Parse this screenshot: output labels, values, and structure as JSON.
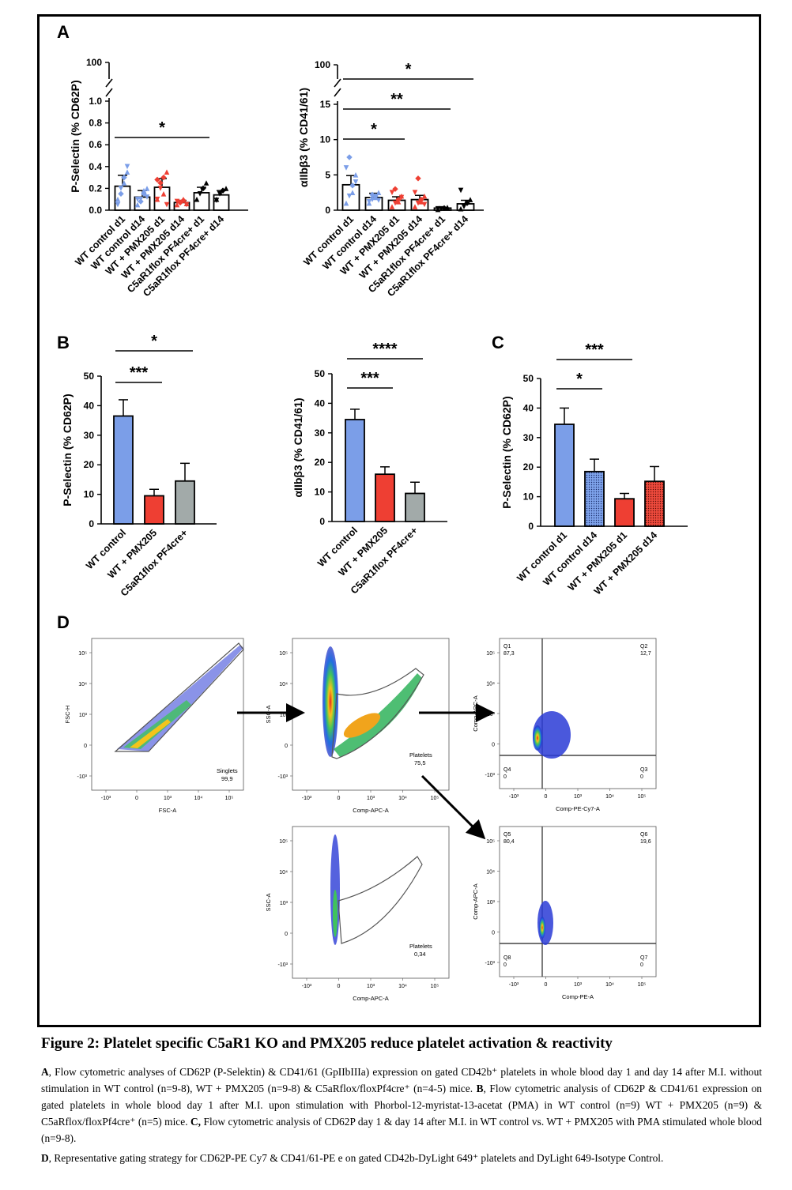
{
  "figure_title": "Figure 2: Platelet specific C5aR1 KO and PMX205 reduce platelet activation & reactivity",
  "caption": {
    "a_lead": "A",
    "a_text": ", Flow cytometric analyses of CD62P (P-Selektin) & CD41/61 (GpIIbIIIa) expression on gated CD42b⁺ platelets in whole blood day 1 and day 14 after M.I. without stimulation in WT control (n=9-8), WT + PMX205 (n=9-8) & C5aRflox/floxPf4cre⁺ (n=4-5) mice. ",
    "b_lead": "B",
    "b_text": ", Flow cytometric analysis of CD62P & CD41/61 expression on gated platelets in whole blood day 1 after M.I. upon stimulation with Phorbol-12-myristat-13-acetat (PMA) in WT control (n=9) WT + PMX205 (n=9) & C5aRflox/floxPf4cre⁺ (n=5) mice. ",
    "c_lead": "C,",
    "c_text": " Flow cytometric analysis of CD62P day 1 & day 14 after M.I. in WT control vs. WT + PMX205 with PMA stimulated whole blood (n=9-8).",
    "d_lead": "D",
    "d_text": ", Representative gating strategy for CD62P-PE Cy7 & CD41/61-PE e on gated CD42b-DyLight 649⁺ platelets and DyLight 649-Isotype Control."
  },
  "panel_labels": {
    "a": "A",
    "b": "B",
    "c": "C",
    "d": "D"
  },
  "colors": {
    "blue": "#7b9ee8",
    "red": "#ee3f33",
    "gray": "#a2aaa9",
    "black": "#000000",
    "pt_blue": "#7fa4ec",
    "pt_red": "#ee4a3c"
  },
  "chart_data": [
    {
      "id": "A1",
      "type": "bar",
      "panel": "A",
      "ylabel": "P-Selectin (% CD62P)",
      "yticks_low": [
        "0.0",
        "0.2",
        "0.4",
        "0.6",
        "0.8",
        "1.0"
      ],
      "yticks_high": [
        "100"
      ],
      "ylim": [
        0,
        1.0
      ],
      "axis_break": [
        1.0,
        100
      ],
      "categories": [
        "WT control d1",
        "WT control d14",
        "WT + PMX205 d1",
        "WT + PMX205 d14",
        "C5aR1flox PF4cre+ d1",
        "C5aR1flox PF4cre+ d14"
      ],
      "values": [
        0.22,
        0.12,
        0.21,
        0.07,
        0.16,
        0.14
      ],
      "errors": [
        0.1,
        0.06,
        0.08,
        0.02,
        0.05,
        0.04
      ],
      "points": [
        [
          0.1,
          0.2,
          0.3,
          0.35,
          0.05,
          0.15,
          0.25,
          0.4
        ],
        [
          0.05,
          0.1,
          0.15,
          0.2,
          0.1,
          0.08,
          0.18,
          0.12
        ],
        [
          0.1,
          0.2,
          0.3,
          0.35,
          0.1,
          0.25,
          0.15,
          0.05,
          0.28
        ],
        [
          0.05,
          0.07,
          0.09,
          0.06,
          0.08,
          0.07,
          0.1,
          0.05
        ],
        [
          0.1,
          0.15,
          0.2,
          0.25
        ],
        [
          0.1,
          0.15,
          0.18,
          0.2,
          0.09
        ]
      ],
      "marker_color": [
        "blue",
        "blue",
        "red",
        "red",
        "black",
        "black"
      ],
      "significance": [
        {
          "label": "*",
          "from": 0,
          "to": 4
        }
      ]
    },
    {
      "id": "A2",
      "type": "bar",
      "panel": "A",
      "ylabel": "αIIbβ3 (% CD41/61)",
      "yticks_low": [
        "0",
        "5",
        "10",
        "15"
      ],
      "yticks_high": [
        "100"
      ],
      "ylim": [
        0,
        15
      ],
      "axis_break": [
        15,
        100
      ],
      "categories": [
        "WT control d1",
        "WT control d14",
        "WT + PMX205 d1",
        "WT + PMX205 d14",
        "C5aR1flox PF4cre+ d1",
        "C5aR1flox PF4cre+ d14"
      ],
      "values": [
        3.6,
        1.8,
        1.4,
        1.5,
        0.3,
        0.9
      ],
      "errors": [
        1.3,
        0.6,
        0.5,
        0.6,
        0.1,
        0.5
      ],
      "points": [
        [
          1,
          2,
          3.5,
          5,
          6,
          7.5,
          2.5,
          4
        ],
        [
          1,
          1.5,
          2,
          2.5,
          1.2,
          2.2,
          1.8,
          1.4
        ],
        [
          0.5,
          1,
          1.5,
          2,
          2.5,
          3,
          1.2,
          1.8
        ],
        [
          0.5,
          1,
          1.5,
          2,
          2.5,
          4.5,
          1.2,
          0.8
        ],
        [
          0.1,
          0.2,
          0.3,
          0.4,
          0.2
        ],
        [
          0.2,
          0.5,
          1.0,
          1.5,
          2.8
        ]
      ],
      "marker_color": [
        "blue",
        "blue",
        "red",
        "red",
        "black",
        "black"
      ],
      "significance": [
        {
          "label": "*",
          "from": 0,
          "to": 2
        },
        {
          "label": "**",
          "from": 0,
          "to": 4
        },
        {
          "label": "*",
          "from": 0,
          "to": 5,
          "high": true
        }
      ]
    },
    {
      "id": "B1",
      "type": "bar",
      "panel": "B",
      "ylabel": "P-Selectin (% CD62P)",
      "yticks": [
        "0",
        "10",
        "20",
        "30",
        "40",
        "50"
      ],
      "ylim": [
        0,
        50
      ],
      "categories": [
        "WT control",
        "WT + PMX205",
        "C5aR1flox PF4cre+"
      ],
      "values": [
        36.5,
        9.5,
        14.5
      ],
      "errors": [
        5.5,
        2.2,
        6.0
      ],
      "bar_color": [
        "blue",
        "red",
        "gray"
      ],
      "significance": [
        {
          "label": "***",
          "from": 0,
          "to": 1
        },
        {
          "label": "*",
          "from": 0,
          "to": 2
        }
      ]
    },
    {
      "id": "B2",
      "type": "bar",
      "panel": "B",
      "ylabel": "αIIbβ3 (% CD41/61)",
      "yticks": [
        "0",
        "10",
        "20",
        "30",
        "40",
        "50"
      ],
      "ylim": [
        0,
        50
      ],
      "categories": [
        "WT control",
        "WT + PMX205",
        "C5aR1flox PF4cre+"
      ],
      "values": [
        34.5,
        16,
        9.5
      ],
      "errors": [
        3.5,
        2.5,
        3.8
      ],
      "bar_color": [
        "blue",
        "red",
        "gray"
      ],
      "significance": [
        {
          "label": "***",
          "from": 0,
          "to": 1
        },
        {
          "label": "****",
          "from": 0,
          "to": 2
        }
      ]
    },
    {
      "id": "C1",
      "type": "bar",
      "panel": "C",
      "ylabel": "P-Selectin (% CD62P)",
      "yticks": [
        "0",
        "10",
        "20",
        "30",
        "40",
        "50"
      ],
      "ylim": [
        0,
        50
      ],
      "categories": [
        "WT control d1",
        "WT control d14",
        "WT + PMX205 d1",
        "WT + PMX205 d14"
      ],
      "values": [
        34.5,
        18.5,
        9.3,
        15.2
      ],
      "errors": [
        5.5,
        4.2,
        1.8,
        5.0
      ],
      "bar_color": [
        "blue",
        "pt_blue",
        "red",
        "pt_red"
      ],
      "patterned": [
        false,
        true,
        false,
        true
      ],
      "significance": [
        {
          "label": "*",
          "from": 0,
          "to": 1
        },
        {
          "label": "***",
          "from": 0,
          "to": 2
        }
      ]
    }
  ],
  "flow_data": {
    "plots": [
      {
        "id": "fc1",
        "xlabel": "FSC-A",
        "ylabel": "FSC-H",
        "gate": "Singlets",
        "gate_value": "99,9",
        "xticks": [
          "-10³",
          "0",
          "10³",
          "10⁴",
          "10⁵"
        ],
        "yticks": [
          "10⁵",
          "10⁴",
          "10³",
          "0",
          "-10³"
        ]
      },
      {
        "id": "fc2",
        "xlabel": "Comp-APC-A",
        "ylabel": "SSC-A",
        "gate": "Platelets",
        "gate_value": "75,5",
        "xticks": [
          "-10³",
          "0",
          "10³",
          "10⁴",
          "10⁵"
        ],
        "yticks": [
          "10⁵",
          "10⁴",
          "10³",
          "0",
          "-10³"
        ]
      },
      {
        "id": "fc3",
        "xlabel": "Comp-PE-Cy7-A",
        "ylabel": "Comp-APC-A",
        "quadrants": [
          {
            "name": "Q1",
            "value": "87,3"
          },
          {
            "name": "Q2",
            "value": "12,7"
          },
          {
            "name": "Q4",
            "value": "0"
          },
          {
            "name": "Q3",
            "value": "0"
          }
        ],
        "xticks": [
          "-10³",
          "0",
          "10³",
          "10⁴",
          "10⁵"
        ],
        "yticks": [
          "10⁵",
          "10⁴",
          "10³",
          "0",
          "-10³"
        ]
      },
      {
        "id": "fc4",
        "xlabel": "Comp-APC-A",
        "ylabel": "SSC-A",
        "gate": "Platelets",
        "gate_value": "0,34",
        "xticks": [
          "-10³",
          "0",
          "10³",
          "10⁴",
          "10⁵"
        ],
        "yticks": [
          "10⁵",
          "10⁴",
          "10³",
          "0",
          "-10³"
        ]
      },
      {
        "id": "fc5",
        "xlabel": "Comp-PE-A",
        "ylabel": "Comp-APC-A",
        "quadrants": [
          {
            "name": "Q5",
            "value": "80,4"
          },
          {
            "name": "Q6",
            "value": "19,6"
          },
          {
            "name": "Q8",
            "value": "0"
          },
          {
            "name": "Q7",
            "value": "0"
          }
        ],
        "xticks": [
          "-10³",
          "0",
          "10³",
          "10⁴",
          "10⁵"
        ],
        "yticks": [
          "10⁵",
          "10⁴",
          "10³",
          "0",
          "-10³"
        ]
      }
    ]
  }
}
